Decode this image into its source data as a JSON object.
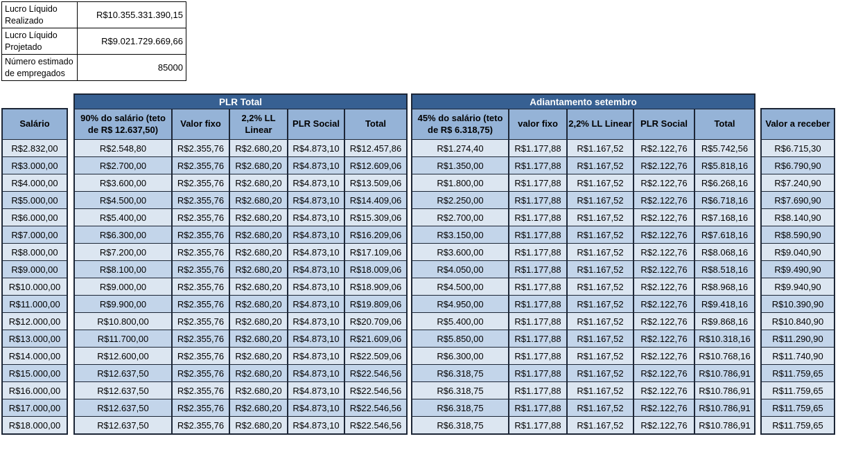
{
  "colors": {
    "group_header_bg": "#376092",
    "group_header_text": "#ffffff",
    "column_header_bg": "#95b3d7",
    "row_light": "#dce6f1",
    "row_dark": "#c3d5ea",
    "border": "#1c2636"
  },
  "summary": {
    "rows": [
      {
        "label": "Lucro Líquido Realizado",
        "value": "R$10.355.331.390,15"
      },
      {
        "label": "Lucro Líquido Projetado",
        "value": "R$9.021.729.669,66"
      },
      {
        "label": "Número estimado de empregados",
        "value": "85000"
      }
    ]
  },
  "main_table": {
    "salario_header": "Salário",
    "receber_header": "Valor a receber",
    "plr": {
      "group": "PLR Total",
      "columns": [
        "90% do salário (teto de R$ 12.637,50)",
        "Valor fixo",
        "2,2% LL Linear",
        "PLR Social",
        "Total"
      ]
    },
    "adiantamento": {
      "group": "Adiantamento setembro",
      "columns": [
        "45% do salário (teto de R$ 6.318,75)",
        "valor fixo",
        "2,2% LL Linear",
        "PLR Social",
        "Total"
      ]
    },
    "rows": [
      {
        "salario": "R$2.832,00",
        "plr": [
          "R$2.548,80",
          "R$2.355,76",
          "R$2.680,20",
          "R$4.873,10",
          "R$12.457,86"
        ],
        "adiantamento": [
          "R$1.274,40",
          "R$1.177,88",
          "R$1.167,52",
          "R$2.122,76",
          "R$5.742,56"
        ],
        "valor_a_receber": "R$6.715,30"
      },
      {
        "salario": "R$3.000,00",
        "plr": [
          "R$2.700,00",
          "R$2.355,76",
          "R$2.680,20",
          "R$4.873,10",
          "R$12.609,06"
        ],
        "adiantamento": [
          "R$1.350,00",
          "R$1.177,88",
          "R$1.167,52",
          "R$2.122,76",
          "R$5.818,16"
        ],
        "valor_a_receber": "R$6.790,90"
      },
      {
        "salario": "R$4.000,00",
        "plr": [
          "R$3.600,00",
          "R$2.355,76",
          "R$2.680,20",
          "R$4.873,10",
          "R$13.509,06"
        ],
        "adiantamento": [
          "R$1.800,00",
          "R$1.177,88",
          "R$1.167,52",
          "R$2.122,76",
          "R$6.268,16"
        ],
        "valor_a_receber": "R$7.240,90"
      },
      {
        "salario": "R$5.000,00",
        "plr": [
          "R$4.500,00",
          "R$2.355,76",
          "R$2.680,20",
          "R$4.873,10",
          "R$14.409,06"
        ],
        "adiantamento": [
          "R$2.250,00",
          "R$1.177,88",
          "R$1.167,52",
          "R$2.122,76",
          "R$6.718,16"
        ],
        "valor_a_receber": "R$7.690,90"
      },
      {
        "salario": "R$6.000,00",
        "plr": [
          "R$5.400,00",
          "R$2.355,76",
          "R$2.680,20",
          "R$4.873,10",
          "R$15.309,06"
        ],
        "adiantamento": [
          "R$2.700,00",
          "R$1.177,88",
          "R$1.167,52",
          "R$2.122,76",
          "R$7.168,16"
        ],
        "valor_a_receber": "R$8.140,90"
      },
      {
        "salario": "R$7.000,00",
        "plr": [
          "R$6.300,00",
          "R$2.355,76",
          "R$2.680,20",
          "R$4.873,10",
          "R$16.209,06"
        ],
        "adiantamento": [
          "R$3.150,00",
          "R$1.177,88",
          "R$1.167,52",
          "R$2.122,76",
          "R$7.618,16"
        ],
        "valor_a_receber": "R$8.590,90"
      },
      {
        "salario": "R$8.000,00",
        "plr": [
          "R$7.200,00",
          "R$2.355,76",
          "R$2.680,20",
          "R$4.873,10",
          "R$17.109,06"
        ],
        "adiantamento": [
          "R$3.600,00",
          "R$1.177,88",
          "R$1.167,52",
          "R$2.122,76",
          "R$8.068,16"
        ],
        "valor_a_receber": "R$9.040,90"
      },
      {
        "salario": "R$9.000,00",
        "plr": [
          "R$8.100,00",
          "R$2.355,76",
          "R$2.680,20",
          "R$4.873,10",
          "R$18.009,06"
        ],
        "adiantamento": [
          "R$4.050,00",
          "R$1.177,88",
          "R$1.167,52",
          "R$2.122,76",
          "R$8.518,16"
        ],
        "valor_a_receber": "R$9.490,90"
      },
      {
        "salario": "R$10.000,00",
        "plr": [
          "R$9.000,00",
          "R$2.355,76",
          "R$2.680,20",
          "R$4.873,10",
          "R$18.909,06"
        ],
        "adiantamento": [
          "R$4.500,00",
          "R$1.177,88",
          "R$1.167,52",
          "R$2.122,76",
          "R$8.968,16"
        ],
        "valor_a_receber": "R$9.940,90"
      },
      {
        "salario": "R$11.000,00",
        "plr": [
          "R$9.900,00",
          "R$2.355,76",
          "R$2.680,20",
          "R$4.873,10",
          "R$19.809,06"
        ],
        "adiantamento": [
          "R$4.950,00",
          "R$1.177,88",
          "R$1.167,52",
          "R$2.122,76",
          "R$9.418,16"
        ],
        "valor_a_receber": "R$10.390,90"
      },
      {
        "salario": "R$12.000,00",
        "plr": [
          "R$10.800,00",
          "R$2.355,76",
          "R$2.680,20",
          "R$4.873,10",
          "R$20.709,06"
        ],
        "adiantamento": [
          "R$5.400,00",
          "R$1.177,88",
          "R$1.167,52",
          "R$2.122,76",
          "R$9.868,16"
        ],
        "valor_a_receber": "R$10.840,90"
      },
      {
        "salario": "R$13.000,00",
        "plr": [
          "R$11.700,00",
          "R$2.355,76",
          "R$2.680,20",
          "R$4.873,10",
          "R$21.609,06"
        ],
        "adiantamento": [
          "R$5.850,00",
          "R$1.177,88",
          "R$1.167,52",
          "R$2.122,76",
          "R$10.318,16"
        ],
        "valor_a_receber": "R$11.290,90"
      },
      {
        "salario": "R$14.000,00",
        "plr": [
          "R$12.600,00",
          "R$2.355,76",
          "R$2.680,20",
          "R$4.873,10",
          "R$22.509,06"
        ],
        "adiantamento": [
          "R$6.300,00",
          "R$1.177,88",
          "R$1.167,52",
          "R$2.122,76",
          "R$10.768,16"
        ],
        "valor_a_receber": "R$11.740,90"
      },
      {
        "salario": "R$15.000,00",
        "plr": [
          "R$12.637,50",
          "R$2.355,76",
          "R$2.680,20",
          "R$4.873,10",
          "R$22.546,56"
        ],
        "adiantamento": [
          "R$6.318,75",
          "R$1.177,88",
          "R$1.167,52",
          "R$2.122,76",
          "R$10.786,91"
        ],
        "valor_a_receber": "R$11.759,65"
      },
      {
        "salario": "R$16.000,00",
        "plr": [
          "R$12.637,50",
          "R$2.355,76",
          "R$2.680,20",
          "R$4.873,10",
          "R$22.546,56"
        ],
        "adiantamento": [
          "R$6.318,75",
          "R$1.177,88",
          "R$1.167,52",
          "R$2.122,76",
          "R$10.786,91"
        ],
        "valor_a_receber": "R$11.759,65"
      },
      {
        "salario": "R$17.000,00",
        "plr": [
          "R$12.637,50",
          "R$2.355,76",
          "R$2.680,20",
          "R$4.873,10",
          "R$22.546,56"
        ],
        "adiantamento": [
          "R$6.318,75",
          "R$1.177,88",
          "R$1.167,52",
          "R$2.122,76",
          "R$10.786,91"
        ],
        "valor_a_receber": "R$11.759,65"
      },
      {
        "salario": "R$18.000,00",
        "plr": [
          "R$12.637,50",
          "R$2.355,76",
          "R$2.680,20",
          "R$4.873,10",
          "R$22.546,56"
        ],
        "adiantamento": [
          "R$6.318,75",
          "R$1.177,88",
          "R$1.167,52",
          "R$2.122,76",
          "R$10.786,91"
        ],
        "valor_a_receber": "R$11.759,65"
      }
    ]
  }
}
